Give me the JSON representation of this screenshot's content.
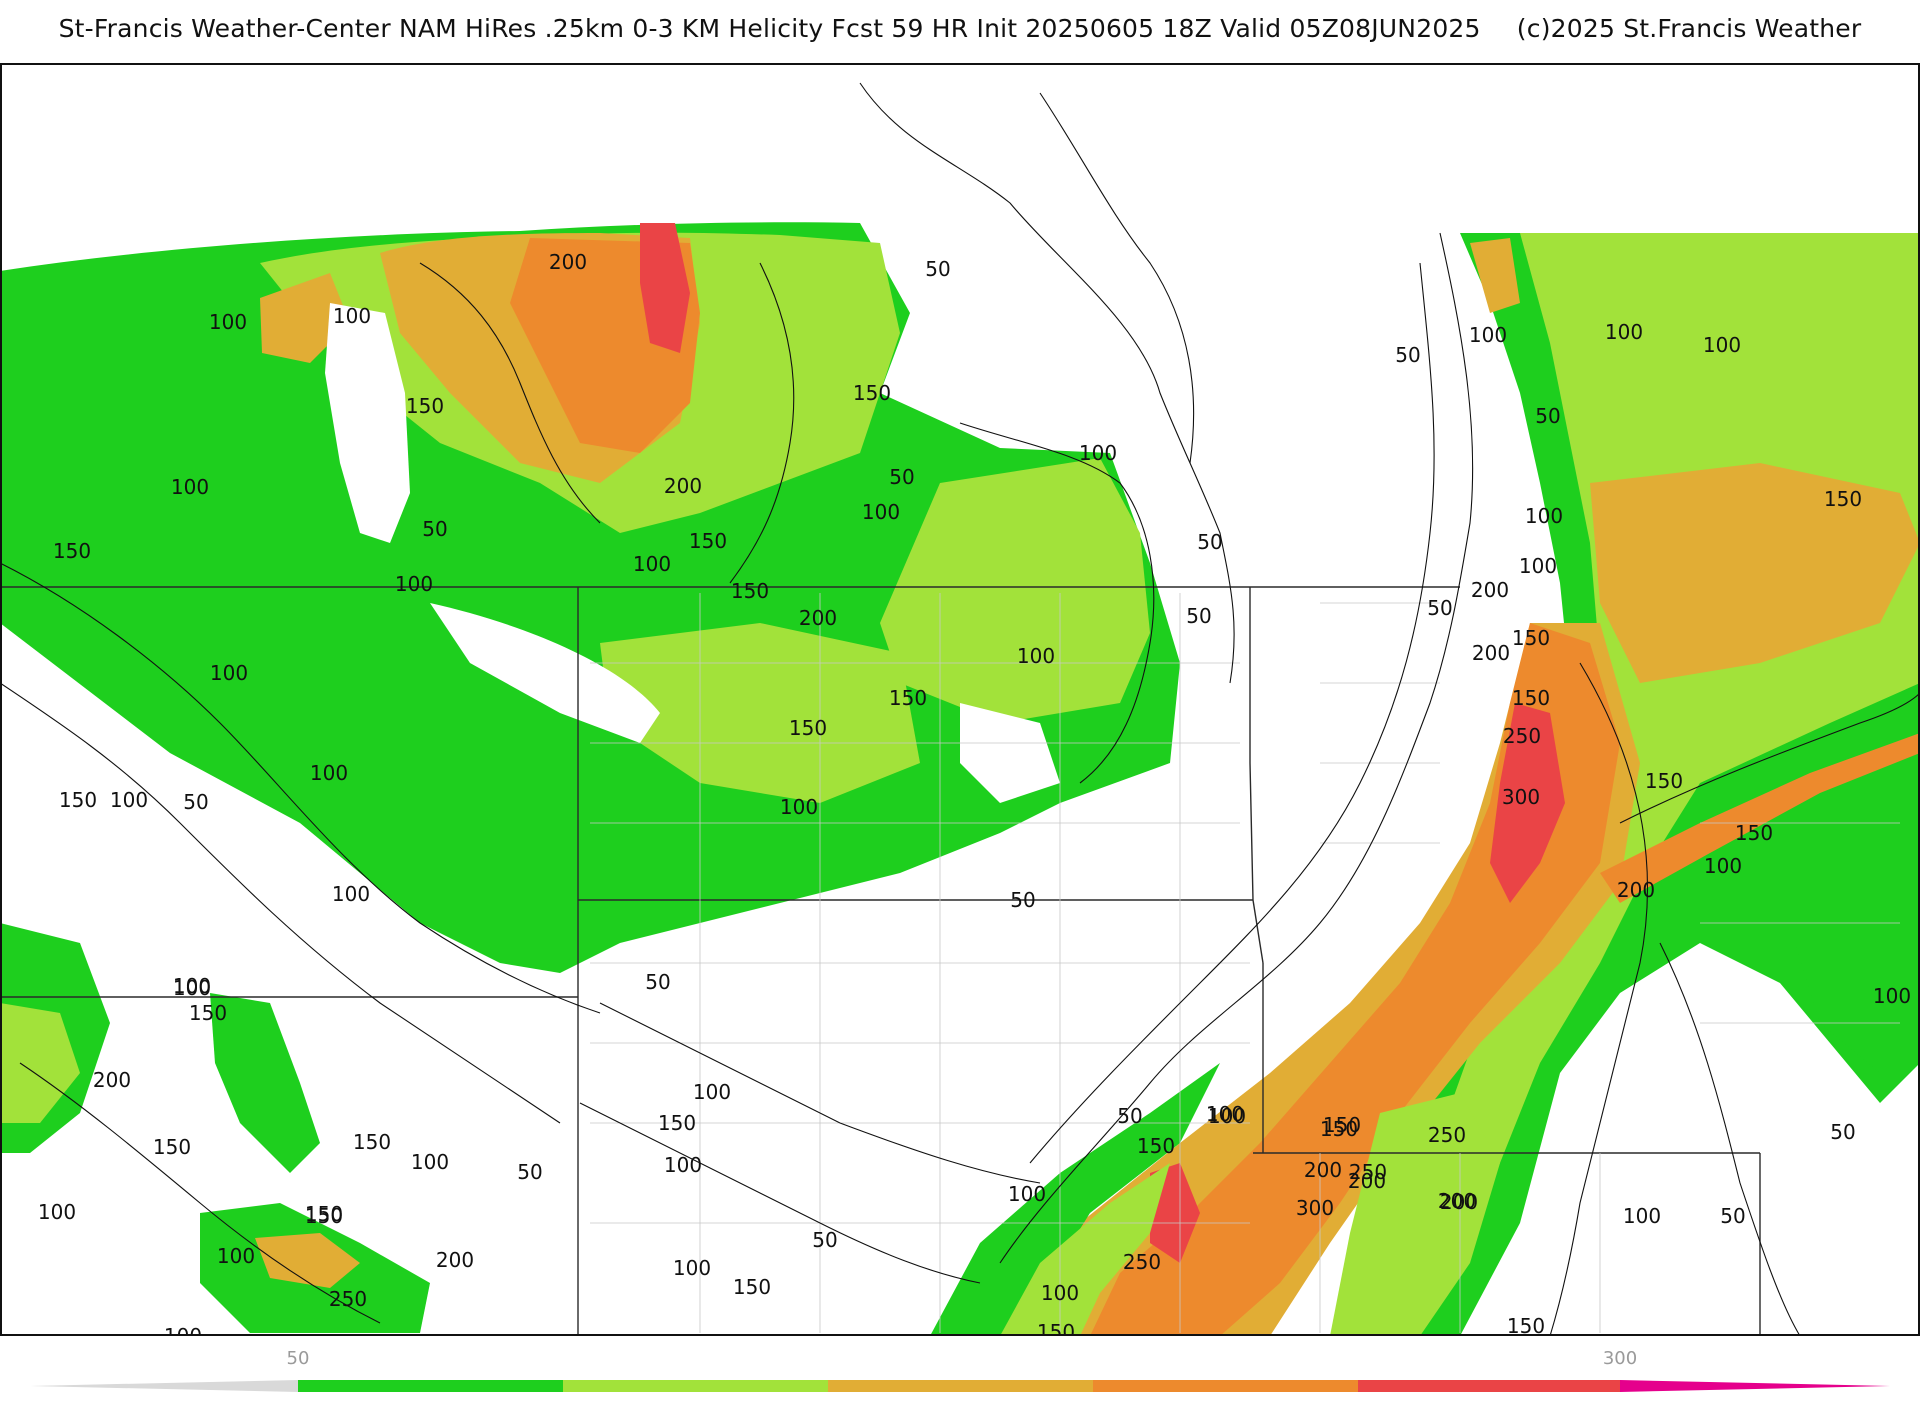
{
  "header": {
    "title": "St-Francis Weather-Center NAM HiRes .25km 0-3 KM Helicity Fcst 59 HR Init 20250605 18Z  Valid 05Z08JUN2025",
    "copyright": "(c)2025 St.Francis Weather"
  },
  "map": {
    "field": "0-3 KM Helicity",
    "colors": {
      "white": "#ffffff",
      "green": "#1ecf1e",
      "light_green": "#a2e23a",
      "gold": "#e1ad35",
      "orange": "#ed8a2d",
      "red": "#ea4446",
      "magenta": "#e5008c"
    },
    "contour_labels": [
      {
        "text": "200"
      },
      {
        "text": "100"
      },
      {
        "text": "100"
      },
      {
        "text": "150"
      },
      {
        "text": "150"
      },
      {
        "text": "200"
      },
      {
        "text": "50"
      },
      {
        "text": "100"
      },
      {
        "text": "50"
      },
      {
        "text": "150"
      },
      {
        "text": "100"
      },
      {
        "text": "150"
      },
      {
        "text": "100"
      },
      {
        "text": "100"
      },
      {
        "text": "150"
      },
      {
        "text": "200"
      },
      {
        "text": "50"
      },
      {
        "text": "100"
      },
      {
        "text": "150"
      },
      {
        "text": "150"
      },
      {
        "text": "100"
      },
      {
        "text": "150"
      },
      {
        "text": "100"
      },
      {
        "text": "100"
      },
      {
        "text": "50"
      },
      {
        "text": "50"
      },
      {
        "text": "100"
      },
      {
        "text": "50"
      },
      {
        "text": "100"
      },
      {
        "text": "150"
      },
      {
        "text": "100"
      },
      {
        "text": "100"
      },
      {
        "text": "150"
      },
      {
        "text": "200"
      },
      {
        "text": "50"
      },
      {
        "text": "50"
      },
      {
        "text": "100"
      },
      {
        "text": "100"
      },
      {
        "text": "50"
      },
      {
        "text": "100"
      },
      {
        "text": "100"
      },
      {
        "text": "200"
      },
      {
        "text": "150"
      },
      {
        "text": "250"
      },
      {
        "text": "300"
      },
      {
        "text": "150"
      },
      {
        "text": "150"
      },
      {
        "text": "100"
      },
      {
        "text": "200"
      },
      {
        "text": "50"
      },
      {
        "text": "100"
      },
      {
        "text": "100"
      },
      {
        "text": "200"
      },
      {
        "text": "150"
      },
      {
        "text": "100"
      },
      {
        "text": "150"
      },
      {
        "text": "150"
      },
      {
        "text": "100"
      },
      {
        "text": "150"
      },
      {
        "text": "100"
      },
      {
        "text": "200"
      },
      {
        "text": "250"
      },
      {
        "text": "50"
      },
      {
        "text": "100"
      },
      {
        "text": "150"
      },
      {
        "text": "100"
      },
      {
        "text": "50"
      },
      {
        "text": "100"
      },
      {
        "text": "100"
      },
      {
        "text": "150"
      },
      {
        "text": "50"
      },
      {
        "text": "100"
      },
      {
        "text": "50"
      },
      {
        "text": "100"
      },
      {
        "text": "150"
      },
      {
        "text": "100"
      },
      {
        "text": "150"
      },
      {
        "text": "200"
      },
      {
        "text": "150"
      },
      {
        "text": "200"
      },
      {
        "text": "100"
      },
      {
        "text": "150"
      },
      {
        "text": "200"
      },
      {
        "text": "100"
      },
      {
        "text": "50"
      },
      {
        "text": "250"
      },
      {
        "text": "200"
      },
      {
        "text": "150"
      },
      {
        "text": "300"
      },
      {
        "text": "250"
      },
      {
        "text": "250"
      },
      {
        "text": "200"
      },
      {
        "text": "100"
      },
      {
        "text": "50"
      },
      {
        "text": "150"
      },
      {
        "text": "50"
      },
      {
        "text": "100"
      }
    ]
  },
  "legend": {
    "labels": [
      "50",
      "300"
    ],
    "colors": [
      "#d9d9d9",
      "#1ecf1e",
      "#a2e23a",
      "#e1ad35",
      "#ed8a2d",
      "#ea4446",
      "#e5008c"
    ]
  }
}
